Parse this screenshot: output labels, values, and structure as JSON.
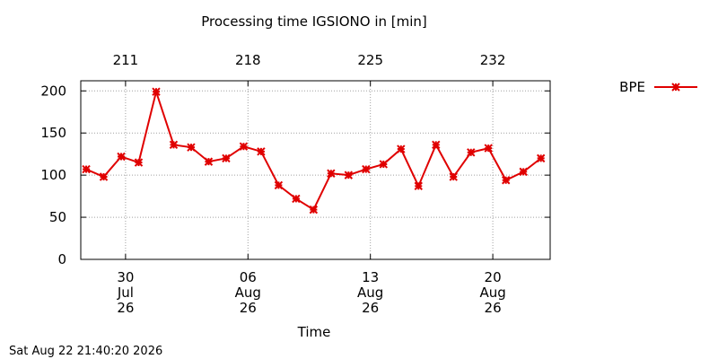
{
  "chart_data": {
    "type": "line",
    "title": "Processing time IGSIONO in [min]",
    "xlabel": "Time",
    "timestamp": "Sat Aug 22 21:40:20 2026",
    "x": [
      208.75,
      209.75,
      210.75,
      211.75,
      212.75,
      213.75,
      214.75,
      215.75,
      216.75,
      217.75,
      218.75,
      219.75,
      220.75,
      221.75,
      222.75,
      223.75,
      224.75,
      225.75,
      226.75,
      227.75,
      228.75,
      229.75,
      230.75,
      231.75,
      232.75,
      233.75,
      234.75
    ],
    "series": [
      {
        "name": "BPE",
        "color": "#e00000",
        "values": [
          107,
          98,
          122,
          115,
          199,
          136,
          133,
          116,
          120,
          134,
          128,
          88,
          72,
          59,
          102,
          100,
          107,
          113,
          131,
          87,
          136,
          98,
          127,
          132,
          94,
          104,
          120
        ]
      }
    ],
    "xlim": [
      208.44,
      235.28
    ],
    "xticks": [
      {
        "value": 211,
        "label": "30 Jul 26"
      },
      {
        "value": 218,
        "label": "06 Aug 26"
      },
      {
        "value": 225,
        "label": "13 Aug 26"
      },
      {
        "value": 232,
        "label": "20 Aug 26"
      }
    ],
    "x2ticks": [
      211,
      218,
      225,
      232
    ],
    "ylim": [
      0,
      212
    ],
    "yticks": [
      0,
      50,
      100,
      150,
      200
    ],
    "grid": true,
    "legend": "outside-right"
  }
}
